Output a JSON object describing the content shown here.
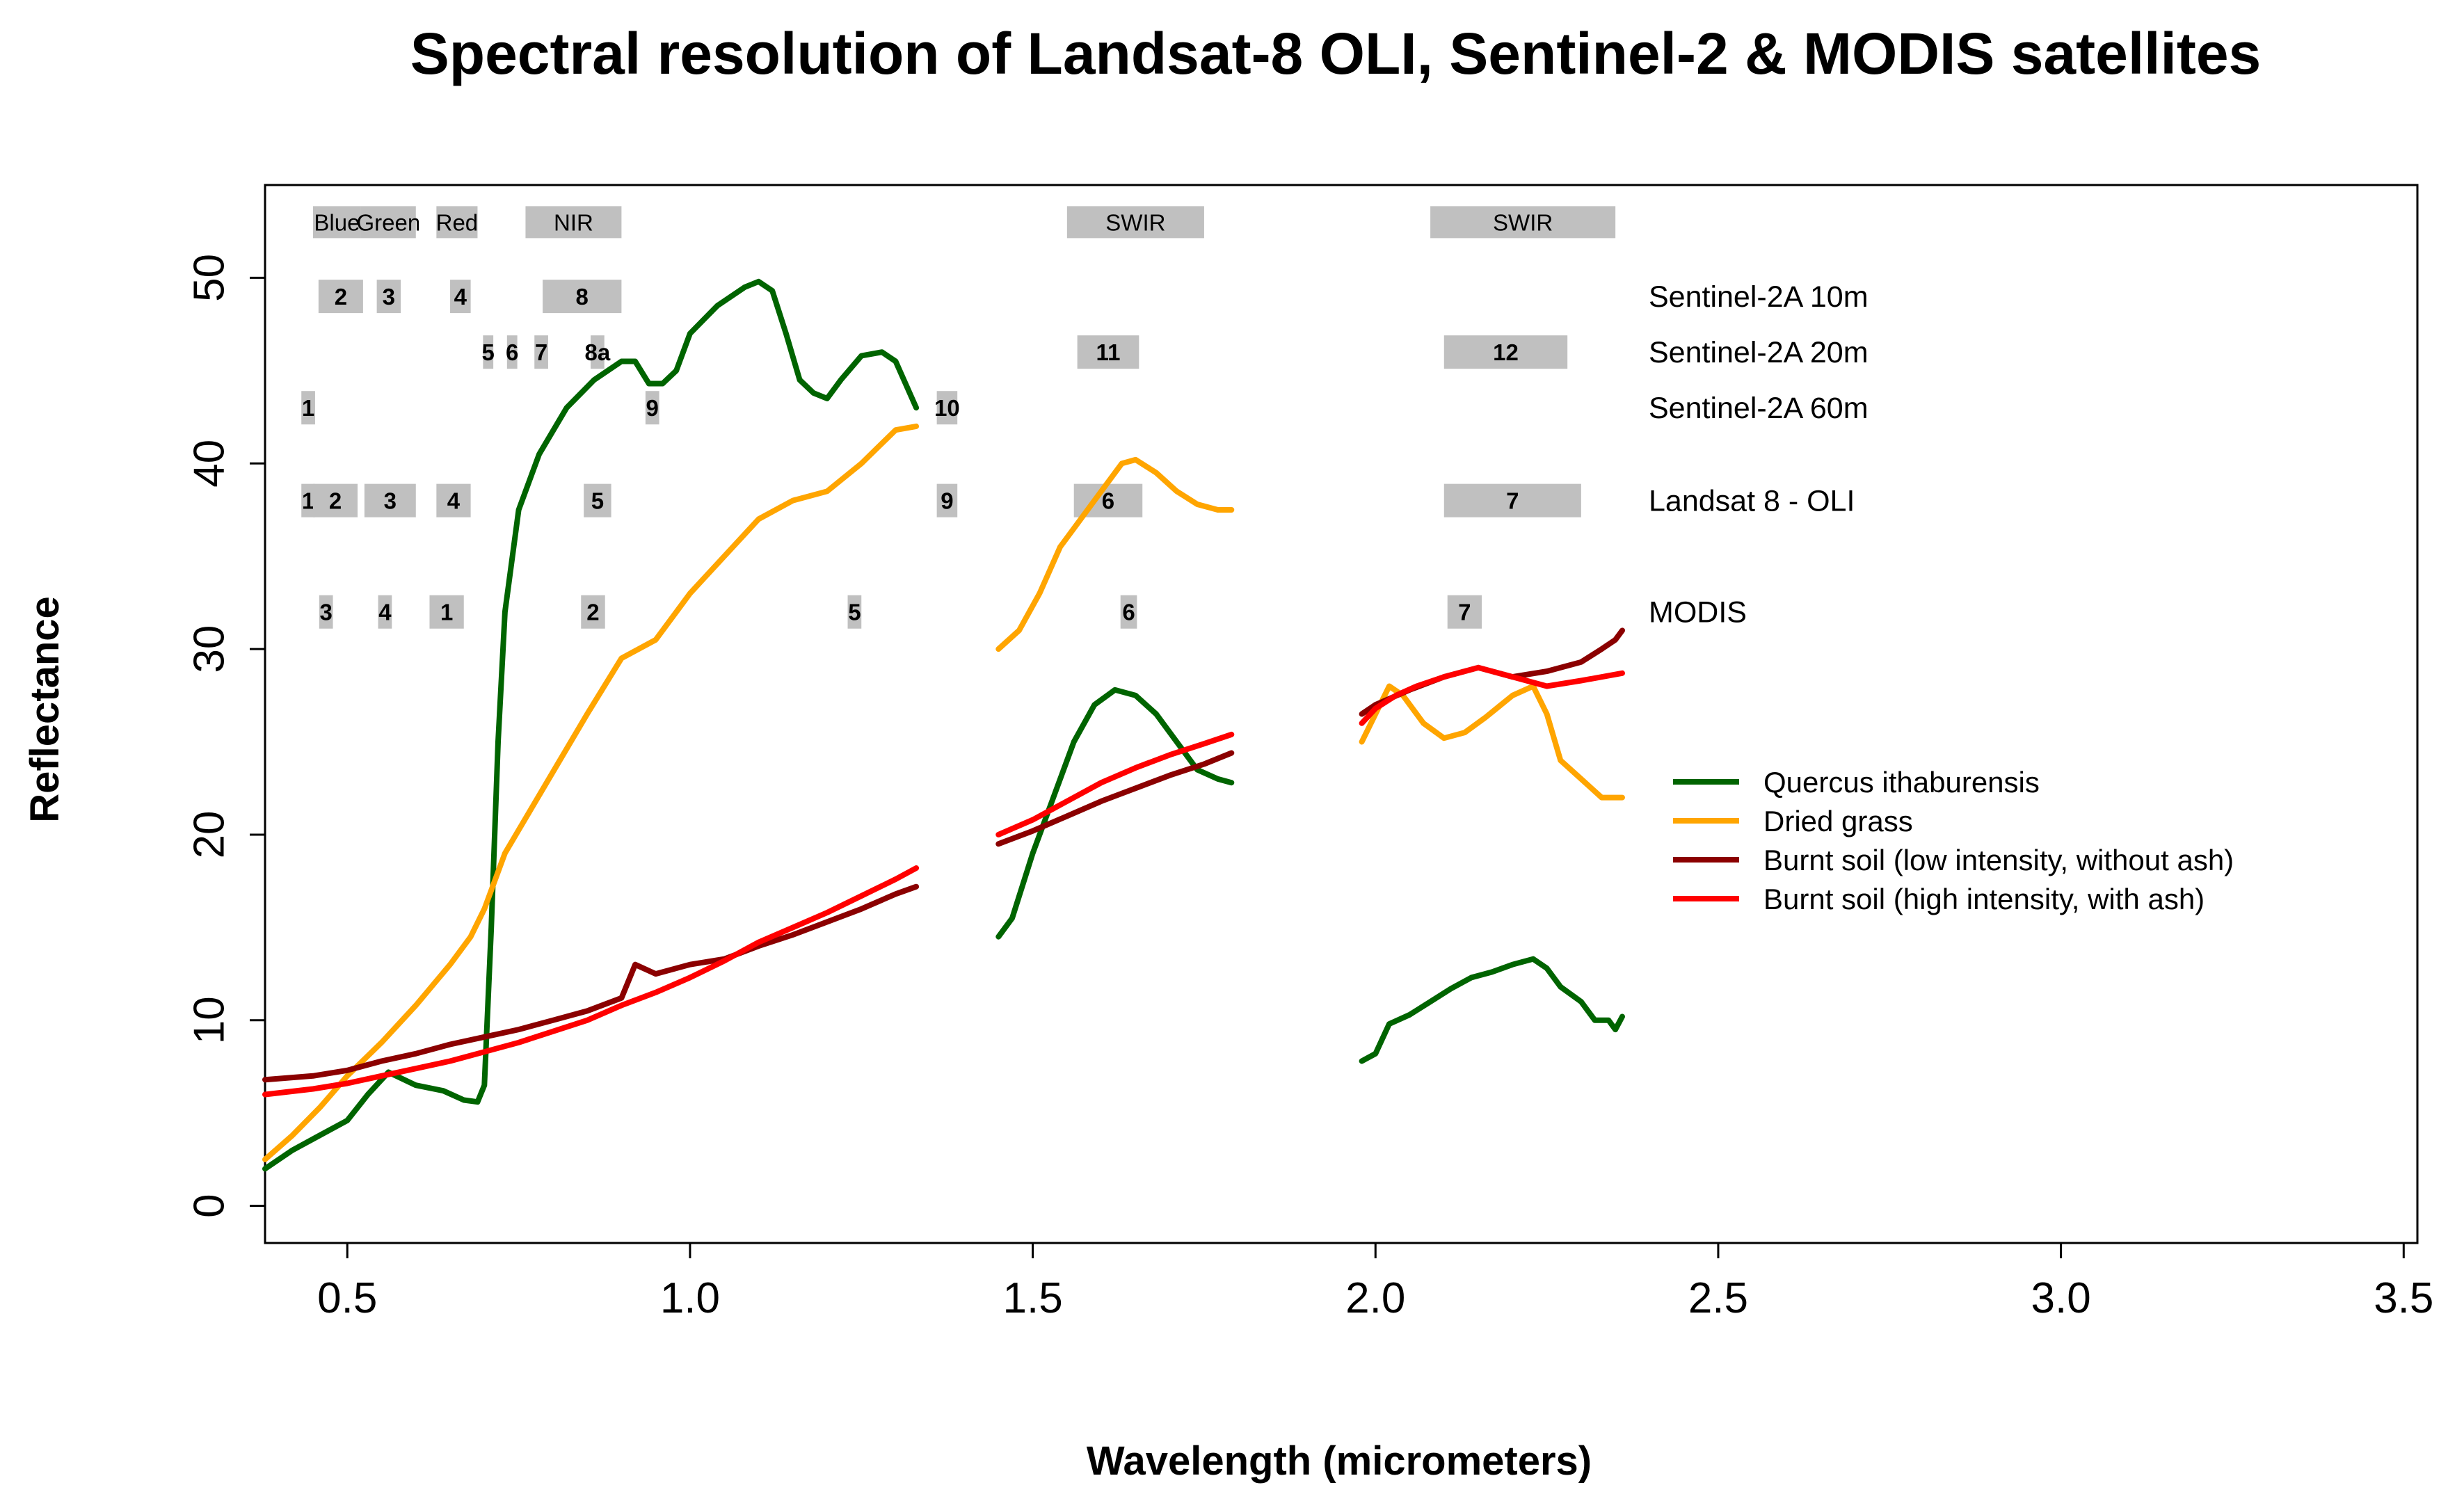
{
  "chart_data": {
    "type": "line",
    "title": "Spectral resolution of Landsat-8 OLI, Sentinel-2 & MODIS satellites",
    "xlabel": "Wavelength (micrometers)",
    "ylabel": "Reflectance",
    "xlim": [
      0.38,
      3.52
    ],
    "ylim": [
      -2,
      55
    ],
    "x_ticks": [
      0.5,
      1.0,
      1.5,
      2.0,
      2.5,
      3.0,
      3.5
    ],
    "x_tick_labels": [
      "0.5",
      "1.0",
      "1.5",
      "2.0",
      "2.5",
      "3.0",
      "3.5"
    ],
    "y_ticks": [
      0,
      10,
      20,
      30,
      40,
      50
    ],
    "y_tick_labels": [
      "0",
      "10",
      "20",
      "30",
      "40",
      "50"
    ],
    "grid": false,
    "legend_position": "right",
    "region_labels": [
      {
        "label": "Blue",
        "x0": 0.45,
        "x1": 0.52,
        "y": 53
      },
      {
        "label": "Green",
        "x0": 0.52,
        "x1": 0.6,
        "y": 53
      },
      {
        "label": "Red",
        "x0": 0.63,
        "x1": 0.69,
        "y": 53
      },
      {
        "label": "NIR",
        "x0": 0.76,
        "x1": 0.9,
        "y": 53
      },
      {
        "label": "SWIR",
        "x0": 1.55,
        "x1": 1.75,
        "y": 53
      },
      {
        "label": "SWIR",
        "x0": 2.08,
        "x1": 2.35,
        "y": 53
      }
    ],
    "sensor_rows": [
      {
        "label": "Sentinel-2A 10m",
        "y": 49,
        "bands": [
          {
            "label": "2",
            "x0": 0.458,
            "x1": 0.523
          },
          {
            "label": "3",
            "x0": 0.543,
            "x1": 0.578
          },
          {
            "label": "4",
            "x0": 0.65,
            "x1": 0.68
          },
          {
            "label": "8",
            "x0": 0.785,
            "x1": 0.9
          }
        ]
      },
      {
        "label": "Sentinel-2A 20m",
        "y": 46,
        "bands": [
          {
            "label": "5",
            "x0": 0.698,
            "x1": 0.713
          },
          {
            "label": "6",
            "x0": 0.733,
            "x1": 0.748
          },
          {
            "label": "7",
            "x0": 0.773,
            "x1": 0.793
          },
          {
            "label": "8a",
            "x0": 0.855,
            "x1": 0.875
          },
          {
            "label": "11",
            "x0": 1.565,
            "x1": 1.655
          },
          {
            "label": "12",
            "x0": 2.1,
            "x1": 2.28
          }
        ]
      },
      {
        "label": "Sentinel-2A 60m",
        "y": 43,
        "bands": [
          {
            "label": "1",
            "x0": 0.433,
            "x1": 0.453
          },
          {
            "label": "9",
            "x0": 0.935,
            "x1": 0.955
          },
          {
            "label": "10",
            "x0": 1.36,
            "x1": 1.39
          }
        ]
      },
      {
        "label": "Landsat 8 - OLI",
        "y": 38,
        "bands": [
          {
            "label": "1",
            "x0": 0.433,
            "x1": 0.453
          },
          {
            "label": "2",
            "x0": 0.45,
            "x1": 0.515
          },
          {
            "label": "3",
            "x0": 0.525,
            "x1": 0.6
          },
          {
            "label": "4",
            "x0": 0.63,
            "x1": 0.68
          },
          {
            "label": "5",
            "x0": 0.845,
            "x1": 0.885
          },
          {
            "label": "9",
            "x0": 1.36,
            "x1": 1.39
          },
          {
            "label": "6",
            "x0": 1.56,
            "x1": 1.66
          },
          {
            "label": "7",
            "x0": 2.1,
            "x1": 2.3
          }
        ]
      },
      {
        "label": "MODIS",
        "y": 32,
        "bands": [
          {
            "label": "3",
            "x0": 0.459,
            "x1": 0.479
          },
          {
            "label": "4",
            "x0": 0.545,
            "x1": 0.565
          },
          {
            "label": "1",
            "x0": 0.62,
            "x1": 0.67
          },
          {
            "label": "2",
            "x0": 0.841,
            "x1": 0.876
          },
          {
            "label": "5",
            "x0": 1.23,
            "x1": 1.25
          },
          {
            "label": "6",
            "x0": 1.628,
            "x1": 1.652
          },
          {
            "label": "7",
            "x0": 2.105,
            "x1": 2.155
          }
        ]
      }
    ],
    "series": [
      {
        "name": "Quercus ithaburensis",
        "color": "#006400",
        "segments": [
          [
            [
              0.38,
              2.0
            ],
            [
              0.42,
              3.0
            ],
            [
              0.46,
              3.8
            ],
            [
              0.5,
              4.6
            ],
            [
              0.53,
              6.0
            ],
            [
              0.56,
              7.2
            ],
            [
              0.6,
              6.5
            ],
            [
              0.64,
              6.2
            ],
            [
              0.67,
              5.7
            ],
            [
              0.69,
              5.6
            ],
            [
              0.7,
              6.5
            ],
            [
              0.71,
              15.0
            ],
            [
              0.72,
              25.0
            ],
            [
              0.73,
              32.0
            ],
            [
              0.75,
              37.5
            ],
            [
              0.78,
              40.5
            ],
            [
              0.82,
              43.0
            ],
            [
              0.86,
              44.5
            ],
            [
              0.9,
              45.5
            ],
            [
              0.92,
              45.5
            ],
            [
              0.94,
              44.3
            ],
            [
              0.96,
              44.3
            ],
            [
              0.98,
              45.0
            ],
            [
              1.0,
              47.0
            ],
            [
              1.04,
              48.5
            ],
            [
              1.08,
              49.5
            ],
            [
              1.1,
              49.8
            ],
            [
              1.12,
              49.3
            ],
            [
              1.14,
              47.0
            ],
            [
              1.16,
              44.5
            ],
            [
              1.18,
              43.8
            ],
            [
              1.2,
              43.5
            ],
            [
              1.22,
              44.5
            ],
            [
              1.25,
              45.8
            ],
            [
              1.28,
              46.0
            ],
            [
              1.3,
              45.5
            ],
            [
              1.33,
              43.0
            ]
          ],
          [
            [
              1.45,
              14.5
            ],
            [
              1.47,
              15.5
            ],
            [
              1.5,
              19.0
            ],
            [
              1.53,
              22.0
            ],
            [
              1.56,
              25.0
            ],
            [
              1.59,
              27.0
            ],
            [
              1.62,
              27.8
            ],
            [
              1.65,
              27.5
            ],
            [
              1.68,
              26.5
            ],
            [
              1.71,
              25.0
            ],
            [
              1.74,
              23.5
            ],
            [
              1.77,
              23.0
            ],
            [
              1.79,
              22.8
            ]
          ],
          [
            [
              1.98,
              7.8
            ],
            [
              2.0,
              8.2
            ],
            [
              2.02,
              9.8
            ],
            [
              2.05,
              10.3
            ],
            [
              2.08,
              11.0
            ],
            [
              2.11,
              11.7
            ],
            [
              2.14,
              12.3
            ],
            [
              2.17,
              12.6
            ],
            [
              2.2,
              13.0
            ],
            [
              2.23,
              13.3
            ],
            [
              2.25,
              12.8
            ],
            [
              2.27,
              11.8
            ],
            [
              2.3,
              11.0
            ],
            [
              2.32,
              10.0
            ],
            [
              2.34,
              10.0
            ],
            [
              2.35,
              9.5
            ],
            [
              2.36,
              10.2
            ]
          ]
        ]
      },
      {
        "name": "Dried grass",
        "color": "#FFA500",
        "segments": [
          [
            [
              0.38,
              2.5
            ],
            [
              0.42,
              3.8
            ],
            [
              0.46,
              5.3
            ],
            [
              0.5,
              7.0
            ],
            [
              0.55,
              8.8
            ],
            [
              0.6,
              10.8
            ],
            [
              0.65,
              13.0
            ],
            [
              0.68,
              14.5
            ],
            [
              0.7,
              16.0
            ],
            [
              0.73,
              19.0
            ],
            [
              0.77,
              21.5
            ],
            [
              0.81,
              24.0
            ],
            [
              0.85,
              26.5
            ],
            [
              0.9,
              29.5
            ],
            [
              0.95,
              30.5
            ],
            [
              1.0,
              33.0
            ],
            [
              1.05,
              35.0
            ],
            [
              1.1,
              37.0
            ],
            [
              1.15,
              38.0
            ],
            [
              1.2,
              38.5
            ],
            [
              1.25,
              40.0
            ],
            [
              1.3,
              41.8
            ],
            [
              1.33,
              42.0
            ]
          ],
          [
            [
              1.45,
              30.0
            ],
            [
              1.48,
              31.0
            ],
            [
              1.51,
              33.0
            ],
            [
              1.54,
              35.5
            ],
            [
              1.57,
              37.0
            ],
            [
              1.6,
              38.5
            ],
            [
              1.63,
              40.0
            ],
            [
              1.65,
              40.2
            ],
            [
              1.68,
              39.5
            ],
            [
              1.71,
              38.5
            ],
            [
              1.74,
              37.8
            ],
            [
              1.77,
              37.5
            ],
            [
              1.79,
              37.5
            ]
          ],
          [
            [
              1.98,
              25.0
            ],
            [
              2.0,
              26.5
            ],
            [
              2.02,
              28.0
            ],
            [
              2.04,
              27.5
            ],
            [
              2.07,
              26.0
            ],
            [
              2.1,
              25.2
            ],
            [
              2.13,
              25.5
            ],
            [
              2.16,
              26.3
            ],
            [
              2.2,
              27.5
            ],
            [
              2.23,
              28.0
            ],
            [
              2.25,
              26.5
            ],
            [
              2.27,
              24.0
            ],
            [
              2.3,
              23.0
            ],
            [
              2.33,
              22.0
            ],
            [
              2.36,
              22.0
            ]
          ]
        ]
      },
      {
        "name": "Burnt soil (low intensity, without ash)",
        "color": "#8B0000",
        "segments": [
          [
            [
              0.38,
              6.8
            ],
            [
              0.45,
              7.0
            ],
            [
              0.5,
              7.3
            ],
            [
              0.55,
              7.8
            ],
            [
              0.6,
              8.2
            ],
            [
              0.65,
              8.7
            ],
            [
              0.7,
              9.1
            ],
            [
              0.75,
              9.5
            ],
            [
              0.8,
              10.0
            ],
            [
              0.85,
              10.5
            ],
            [
              0.9,
              11.2
            ],
            [
              0.92,
              13.0
            ],
            [
              0.95,
              12.5
            ],
            [
              1.0,
              13.0
            ],
            [
              1.05,
              13.3
            ],
            [
              1.1,
              14.0
            ],
            [
              1.15,
              14.6
            ],
            [
              1.2,
              15.3
            ],
            [
              1.25,
              16.0
            ],
            [
              1.3,
              16.8
            ],
            [
              1.33,
              17.2
            ]
          ],
          [
            [
              1.45,
              19.5
            ],
            [
              1.5,
              20.2
            ],
            [
              1.55,
              21.0
            ],
            [
              1.6,
              21.8
            ],
            [
              1.65,
              22.5
            ],
            [
              1.7,
              23.2
            ],
            [
              1.75,
              23.8
            ],
            [
              1.79,
              24.4
            ]
          ],
          [
            [
              1.98,
              26.5
            ],
            [
              2.0,
              27.0
            ],
            [
              2.05,
              27.8
            ],
            [
              2.1,
              28.5
            ],
            [
              2.15,
              29.0
            ],
            [
              2.2,
              28.5
            ],
            [
              2.25,
              28.8
            ],
            [
              2.3,
              29.3
            ],
            [
              2.33,
              30.0
            ],
            [
              2.35,
              30.5
            ],
            [
              2.36,
              31.0
            ]
          ]
        ]
      },
      {
        "name": "Burnt soil (high intensity, with ash)",
        "color": "#FF0000",
        "segments": [
          [
            [
              0.38,
              6.0
            ],
            [
              0.45,
              6.3
            ],
            [
              0.5,
              6.6
            ],
            [
              0.55,
              7.0
            ],
            [
              0.6,
              7.4
            ],
            [
              0.65,
              7.8
            ],
            [
              0.7,
              8.3
            ],
            [
              0.75,
              8.8
            ],
            [
              0.8,
              9.4
            ],
            [
              0.85,
              10.0
            ],
            [
              0.9,
              10.8
            ],
            [
              0.95,
              11.5
            ],
            [
              1.0,
              12.3
            ],
            [
              1.05,
              13.2
            ],
            [
              1.1,
              14.2
            ],
            [
              1.15,
              15.0
            ],
            [
              1.2,
              15.8
            ],
            [
              1.25,
              16.7
            ],
            [
              1.3,
              17.6
            ],
            [
              1.33,
              18.2
            ]
          ],
          [
            [
              1.45,
              20.0
            ],
            [
              1.5,
              20.8
            ],
            [
              1.55,
              21.8
            ],
            [
              1.6,
              22.8
            ],
            [
              1.65,
              23.6
            ],
            [
              1.7,
              24.3
            ],
            [
              1.75,
              24.9
            ],
            [
              1.79,
              25.4
            ]
          ],
          [
            [
              1.98,
              26.0
            ],
            [
              2.0,
              26.8
            ],
            [
              2.03,
              27.5
            ],
            [
              2.06,
              28.0
            ],
            [
              2.1,
              28.5
            ],
            [
              2.15,
              29.0
            ],
            [
              2.2,
              28.5
            ],
            [
              2.25,
              28.0
            ],
            [
              2.3,
              28.3
            ],
            [
              2.36,
              28.7
            ]
          ]
        ]
      }
    ]
  }
}
